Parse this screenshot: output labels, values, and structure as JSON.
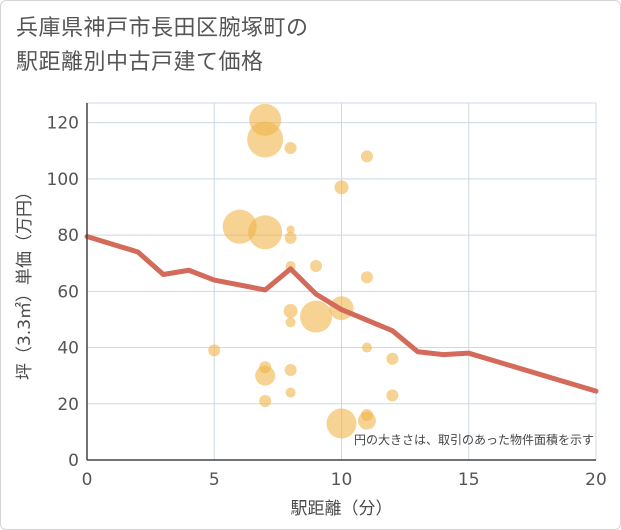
{
  "title_lines": [
    "兵庫県神戸市長田区腕塚町の",
    "駅距離別中古戸建て価格"
  ],
  "chart_data": {
    "type": "scatter",
    "xlabel": "駅距離（分）",
    "ylabel": "坪（3.3㎡）単価（万円）",
    "xlim": [
      0,
      20
    ],
    "ylim": [
      0,
      127
    ],
    "x_ticks": [
      0,
      5,
      10,
      15,
      20
    ],
    "y_ticks": [
      0,
      20,
      40,
      60,
      80,
      100,
      120
    ],
    "grid": true,
    "note": "円の大きさは、取引のあった物件面積を示す",
    "colors": {
      "bubble": "#f0b64a",
      "line": "#d46a5a",
      "grid": "#cdd9e3",
      "axis": "#444444"
    },
    "bubbles": [
      {
        "x": 7,
        "y": 121,
        "size": 16
      },
      {
        "x": 7,
        "y": 114,
        "size": 18
      },
      {
        "x": 8,
        "y": 111,
        "size": 6
      },
      {
        "x": 11,
        "y": 108,
        "size": 6
      },
      {
        "x": 10,
        "y": 97,
        "size": 7
      },
      {
        "x": 6,
        "y": 83,
        "size": 17
      },
      {
        "x": 7,
        "y": 81,
        "size": 17
      },
      {
        "x": 8,
        "y": 82,
        "size": 4
      },
      {
        "x": 8,
        "y": 79,
        "size": 6
      },
      {
        "x": 8,
        "y": 69,
        "size": 5
      },
      {
        "x": 9,
        "y": 69,
        "size": 6
      },
      {
        "x": 11,
        "y": 65,
        "size": 6
      },
      {
        "x": 10,
        "y": 54,
        "size": 12
      },
      {
        "x": 8,
        "y": 53,
        "size": 7
      },
      {
        "x": 8,
        "y": 49,
        "size": 5
      },
      {
        "x": 9,
        "y": 51,
        "size": 16
      },
      {
        "x": 11,
        "y": 40,
        "size": 5
      },
      {
        "x": 12,
        "y": 36,
        "size": 6
      },
      {
        "x": 5,
        "y": 39,
        "size": 6
      },
      {
        "x": 7,
        "y": 33,
        "size": 6
      },
      {
        "x": 7,
        "y": 30,
        "size": 10
      },
      {
        "x": 8,
        "y": 32,
        "size": 6
      },
      {
        "x": 8,
        "y": 24,
        "size": 5
      },
      {
        "x": 12,
        "y": 23,
        "size": 6
      },
      {
        "x": 7,
        "y": 21,
        "size": 6
      },
      {
        "x": 11,
        "y": 16,
        "size": 6
      },
      {
        "x": 11,
        "y": 14,
        "size": 9
      },
      {
        "x": 10,
        "y": 13,
        "size": 15
      }
    ],
    "trend_line": [
      {
        "x": 0,
        "y": 79.5
      },
      {
        "x": 2,
        "y": 74
      },
      {
        "x": 3,
        "y": 66
      },
      {
        "x": 4,
        "y": 67.5
      },
      {
        "x": 5,
        "y": 64
      },
      {
        "x": 7,
        "y": 60.5
      },
      {
        "x": 8,
        "y": 68
      },
      {
        "x": 9,
        "y": 59
      },
      {
        "x": 10,
        "y": 53.5
      },
      {
        "x": 12,
        "y": 46
      },
      {
        "x": 13,
        "y": 38.5
      },
      {
        "x": 14,
        "y": 37.5
      },
      {
        "x": 15,
        "y": 38
      },
      {
        "x": 20,
        "y": 24.5
      }
    ]
  }
}
